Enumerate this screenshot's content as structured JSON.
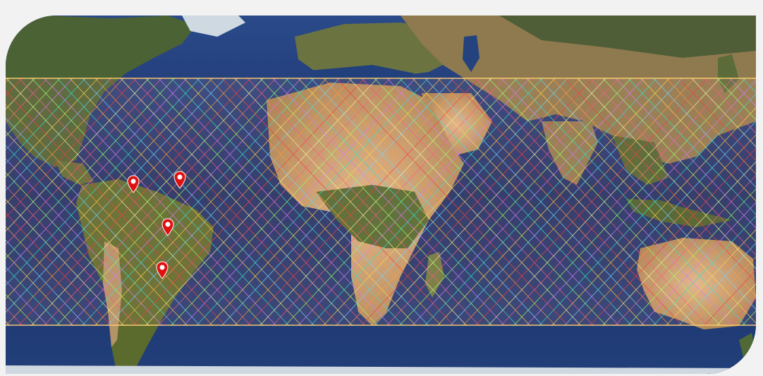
{
  "map": {
    "style": "satellite-earth",
    "projection": "equirectangular",
    "swath_colors": [
      "#ffd84a",
      "#ff5a8a",
      "#6fd6ff",
      "#9cff6a",
      "#ff9a3a",
      "#d77bff",
      "#ff3b3b",
      "#2ee6c9",
      "#f4f4a0"
    ],
    "marker_color": "#e01010",
    "ocean_color": "#1f356e",
    "land_colors": {
      "forest": "#3f5a2a",
      "desert": "#c9a06a",
      "arid": "#9b8052",
      "ice": "#dfe6ee"
    }
  },
  "markers": [
    {
      "icon": "map-pin-icon"
    },
    {
      "icon": "map-pin-icon"
    },
    {
      "icon": "map-pin-icon"
    },
    {
      "icon": "map-pin-icon"
    }
  ]
}
